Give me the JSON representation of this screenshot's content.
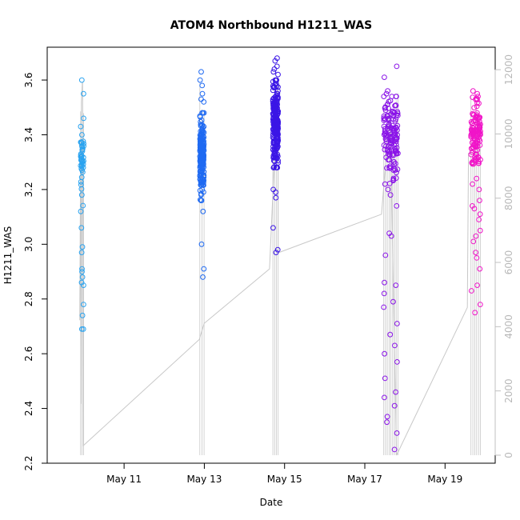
{
  "chart_data": {
    "type": "scatter",
    "title": "ATOM4 Northbound H1211_WAS",
    "xlabel": "Date",
    "ylabel": "H1211_WAS",
    "xlim": [
      "2018-05-09T02:00",
      "2018-05-20T06:00"
    ],
    "ylim": [
      2.2,
      3.72
    ],
    "y2lim": [
      -250,
      12700
    ],
    "x_ticks": [
      {
        "date": "2018-05-11",
        "label": "May 11"
      },
      {
        "date": "2018-05-13",
        "label": "May 13"
      },
      {
        "date": "2018-05-15",
        "label": "May 15"
      },
      {
        "date": "2018-05-17",
        "label": "May 17"
      },
      {
        "date": "2018-05-19",
        "label": "May 19"
      }
    ],
    "y_ticks": [
      {
        "value": 2.2,
        "label": "2.2"
      },
      {
        "value": 2.4,
        "label": "2.4"
      },
      {
        "value": 2.6,
        "label": "2.6"
      },
      {
        "value": 2.8,
        "label": "2.8"
      },
      {
        "value": 3.0,
        "label": "3.0"
      },
      {
        "value": 3.2,
        "label": "3.2"
      },
      {
        "value": 3.4,
        "label": "3.4"
      },
      {
        "value": 3.6,
        "label": "3.6"
      }
    ],
    "y2_ticks": [
      {
        "value": 0,
        "label": "0"
      },
      {
        "value": 2000,
        "label": "2000"
      },
      {
        "value": 4000,
        "label": "4000"
      },
      {
        "value": 6000,
        "label": "6000"
      },
      {
        "value": 8000,
        "label": "8000"
      },
      {
        "value": 10000,
        "label": "10000"
      },
      {
        "value": 12000,
        "label": "12000"
      }
    ],
    "grid": false,
    "flights": [
      {
        "color": "#29a3f0",
        "x_start": "2018-05-09T22:00",
        "x_end": "2018-05-09T23:50",
        "y_center": 3.3,
        "y_sd": 0.06,
        "low_values": [
          2.99,
          2.97,
          2.91,
          2.9,
          2.88,
          2.86,
          2.85,
          2.78,
          2.74,
          2.69,
          2.69,
          3.06,
          3.12,
          3.18
        ],
        "high_values": [
          3.6,
          3.55,
          3.46,
          3.43,
          3.4,
          3.37
        ],
        "count": 55
      },
      {
        "color": "#1f6af2",
        "x_start": "2018-05-12T21:20",
        "x_end": "2018-05-12T23:50",
        "y_center": 3.32,
        "y_sd": 0.07,
        "low_values": [
          3.0,
          2.91,
          2.88,
          3.12,
          3.18
        ],
        "high_values": [
          3.63,
          3.6,
          3.58,
          3.55,
          3.53,
          3.52
        ],
        "count": 200
      },
      {
        "color": "#3b16e6",
        "x_start": "2018-05-14T17:00",
        "x_end": "2018-05-14T20:10",
        "y_center": 3.44,
        "y_sd": 0.08,
        "low_values": [
          3.06,
          2.98,
          2.97,
          3.17,
          3.19,
          3.2
        ],
        "high_values": [
          3.68,
          3.67,
          3.65,
          3.64,
          3.63,
          3.62,
          3.6
        ],
        "count": 240
      },
      {
        "color": "#8a14e8",
        "x_start": "2018-05-17T11:20",
        "x_end": "2018-05-17T19:50",
        "y_center": 3.38,
        "y_sd": 0.08,
        "low_values": [
          2.25,
          2.31,
          2.35,
          2.37,
          2.41,
          2.44,
          2.46,
          2.51,
          2.57,
          2.6,
          2.63,
          2.67,
          2.71,
          2.77,
          2.79,
          2.82,
          2.85,
          2.86,
          2.96,
          3.03,
          3.04,
          3.14,
          3.18,
          3.2
        ],
        "high_values": [
          3.65,
          3.61,
          3.56,
          3.55,
          3.54
        ],
        "count": 170
      },
      {
        "color": "#f015c8",
        "x_start": "2018-05-19T15:30",
        "x_end": "2018-05-19T21:10",
        "y_center": 3.4,
        "y_sd": 0.06,
        "low_values": [
          2.75,
          2.78,
          2.83,
          2.85,
          2.91,
          2.95,
          2.97,
          3.01,
          3.03,
          3.05,
          3.09,
          3.11,
          3.13,
          3.14,
          3.16,
          3.2,
          3.22,
          3.24
        ],
        "high_values": [
          3.56,
          3.55,
          3.54,
          3.53
        ],
        "count": 140
      }
    ],
    "altitude_series": {
      "axis": "right",
      "color": "#c8c8c8",
      "points": [
        {
          "x": "2018-05-09T21:30",
          "y": 4200
        },
        {
          "x": "2018-05-09T22:00",
          "y": 9500
        },
        {
          "x": "2018-05-09T22:10",
          "y": 1600
        },
        {
          "x": "2018-05-09T22:30",
          "y": 11000
        },
        {
          "x": "2018-05-09T23:00",
          "y": 11600
        },
        {
          "x": "2018-05-09T23:10",
          "y": 11600
        },
        {
          "x": "2018-05-09T23:40",
          "y": 300
        },
        {
          "x": "2018-05-12T21:00",
          "y": 3600
        },
        {
          "x": "2018-05-12T23:55",
          "y": 4100
        },
        {
          "x": "2018-05-14T15:00",
          "y": 5800
        },
        {
          "x": "2018-05-14T20:00",
          "y": 11700
        },
        {
          "x": "2018-05-14T20:10",
          "y": 6300
        },
        {
          "x": "2018-05-17T10:00",
          "y": 7500
        },
        {
          "x": "2018-05-17T15:00",
          "y": 10800
        },
        {
          "x": "2018-05-17T19:00",
          "y": 0
        },
        {
          "x": "2018-05-19T13:20",
          "y": 4600
        },
        {
          "x": "2018-05-19T14:00",
          "y": 9400
        },
        {
          "x": "2018-05-19T21:00",
          "y": 9400
        }
      ]
    }
  }
}
